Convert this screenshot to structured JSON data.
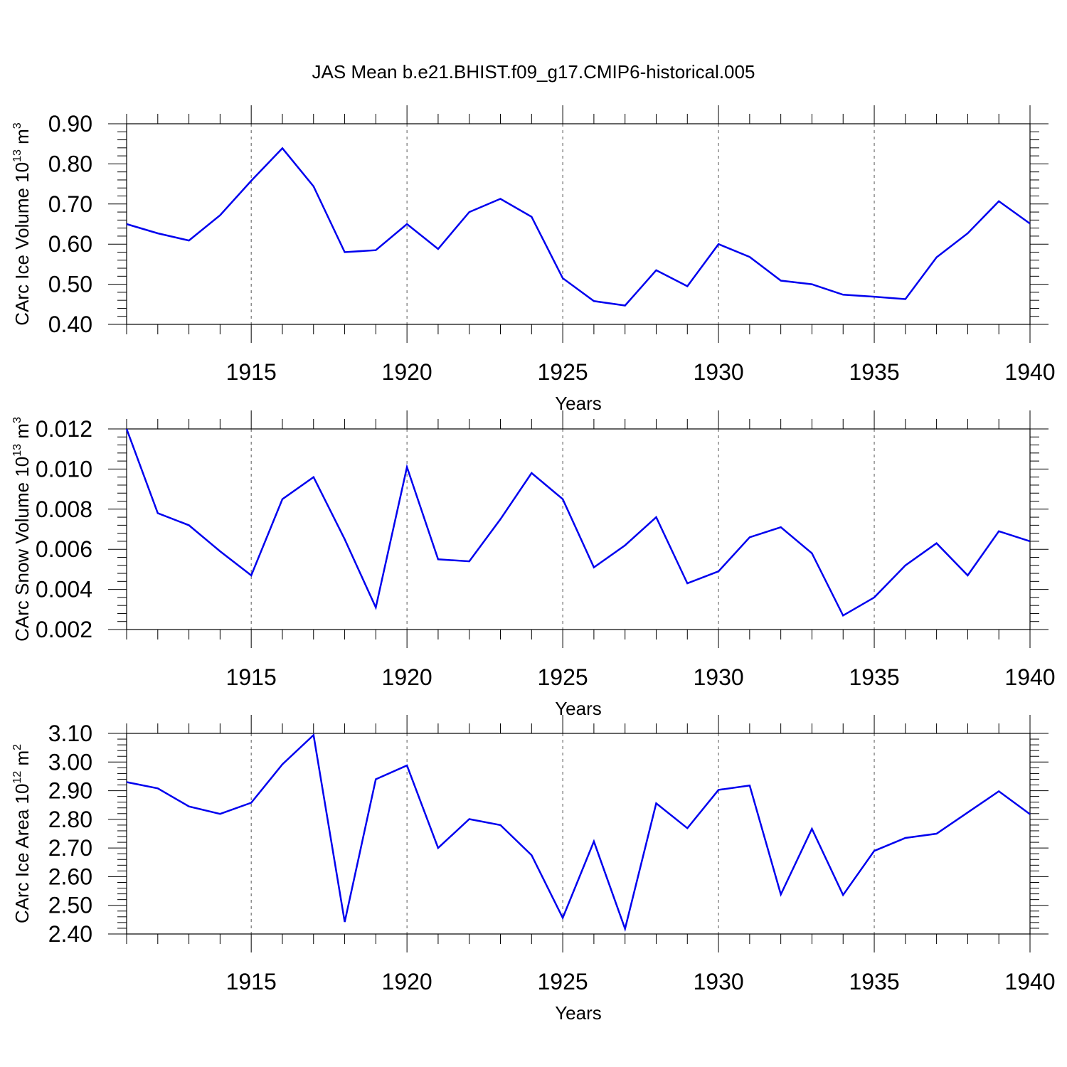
{
  "title": "JAS Mean b.e21.BHIST.f09_g17.CMIP6-historical.005",
  "colors": {
    "series": "#0000ee",
    "axes": "#000000",
    "grid": "#555555"
  },
  "chart_data": [
    {
      "type": "line",
      "xlabel": "Years",
      "ylabel": "CArc Ice Volume 10",
      "ylabel_exp": "13",
      "ylabel_unit": " m",
      "ylabel_unit_exp": "3",
      "xlim": [
        1911,
        1940
      ],
      "ylim": [
        0.4,
        0.9
      ],
      "xticks": [
        1915,
        1920,
        1925,
        1930,
        1935,
        1940
      ],
      "yticks": [
        0.4,
        0.5,
        0.6,
        0.7,
        0.8,
        0.9
      ],
      "ytick_labels": [
        "0.40",
        "0.50",
        "0.60",
        "0.70",
        "0.80",
        "0.90"
      ],
      "y_minor_step": 0.02,
      "grid": "vertical-dashed",
      "x": [
        1911,
        1912,
        1913,
        1914,
        1915,
        1916,
        1917,
        1918,
        1919,
        1920,
        1921,
        1922,
        1923,
        1924,
        1925,
        1926,
        1927,
        1928,
        1929,
        1930,
        1931,
        1932,
        1933,
        1934,
        1935,
        1936,
        1937,
        1938,
        1939,
        1940
      ],
      "values": [
        0.65,
        0.627,
        0.609,
        0.672,
        0.758,
        0.839,
        0.744,
        0.58,
        0.585,
        0.65,
        0.588,
        0.68,
        0.713,
        0.668,
        0.515,
        0.458,
        0.447,
        0.535,
        0.495,
        0.6,
        0.568,
        0.509,
        0.5,
        0.474,
        0.469,
        0.463,
        0.567,
        0.627,
        0.707,
        0.651
      ]
    },
    {
      "type": "line",
      "xlabel": "Years",
      "ylabel": "CArc Snow Volume 10",
      "ylabel_exp": "13",
      "ylabel_unit": " m",
      "ylabel_unit_exp": "3",
      "xlim": [
        1911,
        1940
      ],
      "ylim": [
        0.002,
        0.012
      ],
      "xticks": [
        1915,
        1920,
        1925,
        1930,
        1935,
        1940
      ],
      "yticks": [
        0.002,
        0.004,
        0.006,
        0.008,
        0.01,
        0.012
      ],
      "ytick_labels": [
        "0.002",
        "0.004",
        "0.006",
        "0.008",
        "0.010",
        "0.012"
      ],
      "y_minor_step": 0.0004,
      "grid": "vertical-dashed",
      "x": [
        1911,
        1912,
        1913,
        1914,
        1915,
        1916,
        1917,
        1918,
        1919,
        1920,
        1921,
        1922,
        1923,
        1924,
        1925,
        1926,
        1927,
        1928,
        1929,
        1930,
        1931,
        1932,
        1933,
        1934,
        1935,
        1936,
        1937,
        1938,
        1939,
        1940
      ],
      "values": [
        0.012,
        0.0078,
        0.0072,
        0.0059,
        0.0047,
        0.0085,
        0.0096,
        0.0065,
        0.0031,
        0.0101,
        0.0055,
        0.0054,
        0.0075,
        0.0098,
        0.0085,
        0.0051,
        0.0062,
        0.0076,
        0.0043,
        0.0049,
        0.0066,
        0.0071,
        0.0058,
        0.0027,
        0.0036,
        0.0052,
        0.0063,
        0.0047,
        0.0069,
        0.0064
      ]
    },
    {
      "type": "line",
      "xlabel": "Years",
      "ylabel": "CArc Ice Area 10",
      "ylabel_exp": "12",
      "ylabel_unit": " m",
      "ylabel_unit_exp": "2",
      "xlim": [
        1911,
        1940
      ],
      "ylim": [
        2.4,
        3.1
      ],
      "xticks": [
        1915,
        1920,
        1925,
        1930,
        1935,
        1940
      ],
      "yticks": [
        2.4,
        2.5,
        2.6,
        2.7,
        2.8,
        2.9,
        3.0,
        3.1
      ],
      "ytick_labels": [
        "2.40",
        "2.50",
        "2.60",
        "2.70",
        "2.80",
        "2.90",
        "3.00",
        "3.10"
      ],
      "y_minor_step": 0.02,
      "grid": "vertical-dashed",
      "x": [
        1911,
        1912,
        1913,
        1914,
        1915,
        1916,
        1917,
        1918,
        1919,
        1920,
        1921,
        1922,
        1923,
        1924,
        1925,
        1926,
        1927,
        1928,
        1929,
        1930,
        1931,
        1932,
        1933,
        1934,
        1935,
        1936,
        1937,
        1938,
        1939,
        1940
      ],
      "values": [
        2.93,
        2.908,
        2.845,
        2.819,
        2.858,
        2.992,
        3.094,
        2.442,
        2.94,
        2.988,
        2.7,
        2.801,
        2.78,
        2.675,
        2.456,
        2.723,
        2.418,
        2.856,
        2.769,
        2.903,
        2.918,
        2.538,
        2.767,
        2.536,
        2.69,
        2.735,
        2.75,
        2.824,
        2.898,
        2.818
      ]
    }
  ]
}
